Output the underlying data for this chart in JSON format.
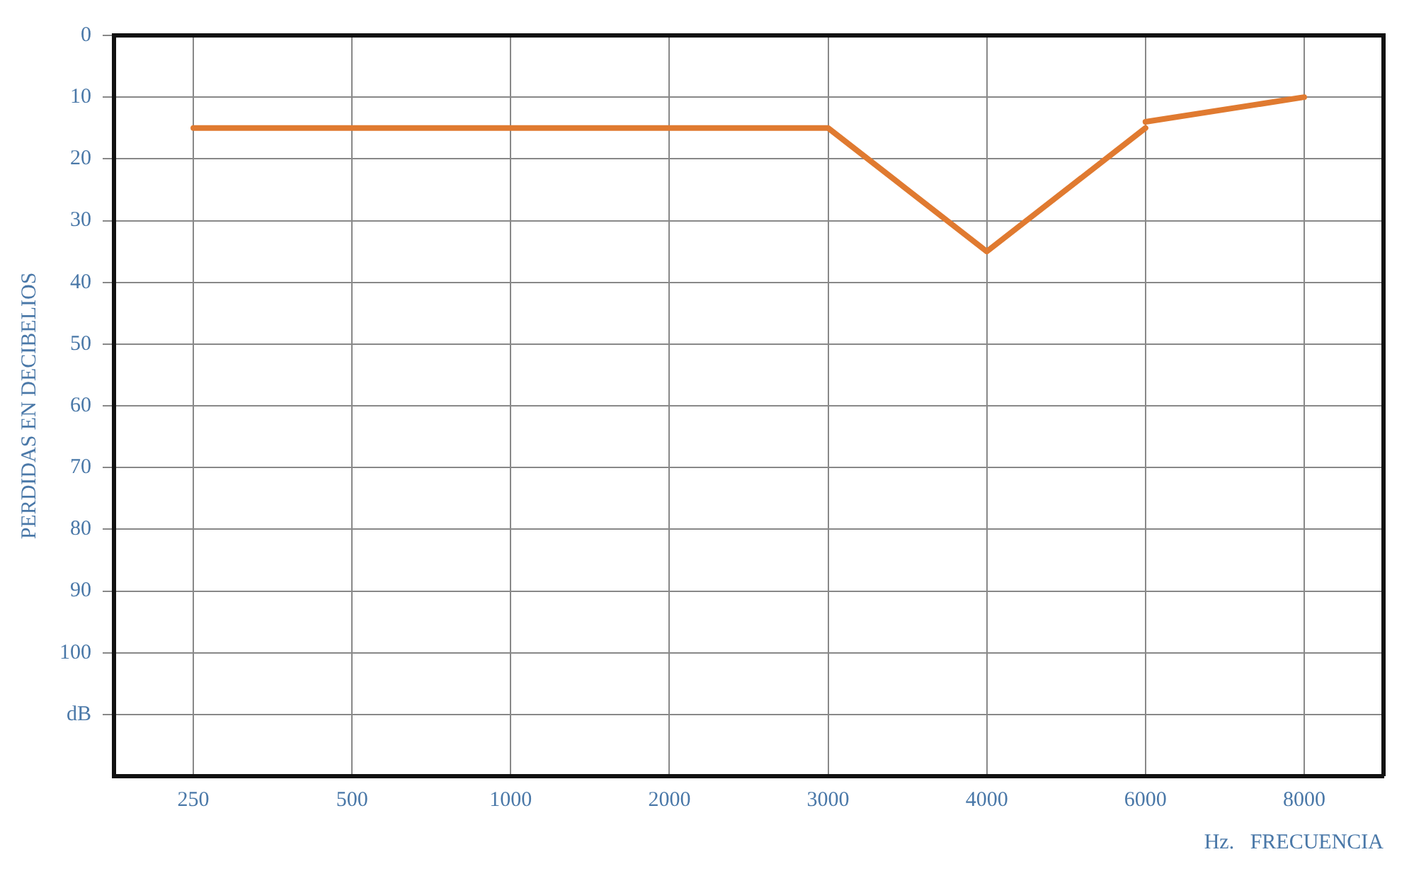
{
  "chart_data": {
    "type": "line",
    "xlabel": "Hz.   FRECUENCIA",
    "ylabel": "PERDIDAS EN DECIBELIOS",
    "categories": [
      "250",
      "500",
      "1000",
      "2000",
      "3000",
      "4000",
      "6000",
      "8000"
    ],
    "series": [
      {
        "color": "#e07a30",
        "values": [
          15,
          15,
          15,
          15,
          15,
          35,
          15,
          null
        ]
      },
      {
        "color": "#e07a30",
        "values": [
          null,
          null,
          null,
          null,
          null,
          null,
          14,
          10
        ]
      }
    ],
    "ylim": [
      120,
      0
    ],
    "yticks": [
      0,
      10,
      20,
      30,
      40,
      50,
      60,
      70,
      80,
      90,
      100,
      {
        "value": 110,
        "label": "dB"
      }
    ],
    "grid": true,
    "marker": "none",
    "line_style": "solid"
  }
}
